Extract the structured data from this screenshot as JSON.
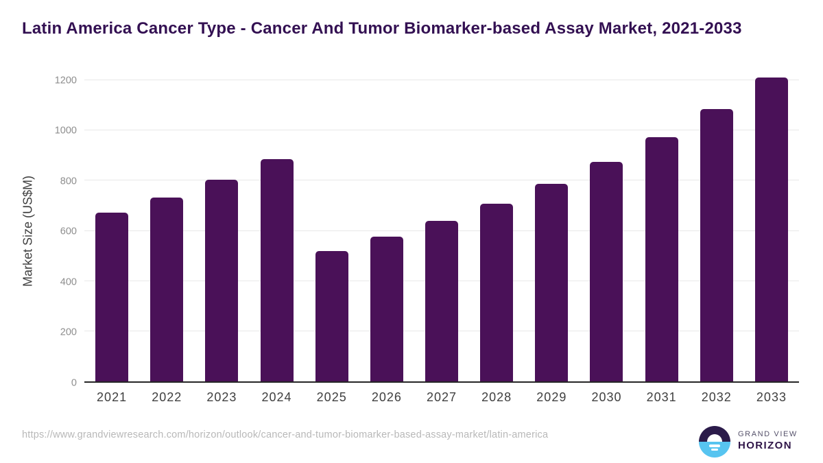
{
  "title": "Latin America Cancer Type - Cancer And Tumor Biomarker-based Assay Market, 2021-2033",
  "chart_data": {
    "type": "bar",
    "categories": [
      "2021",
      "2022",
      "2023",
      "2024",
      "2025",
      "2026",
      "2027",
      "2028",
      "2029",
      "2030",
      "2031",
      "2032",
      "2033"
    ],
    "values": [
      672,
      732,
      805,
      885,
      520,
      578,
      640,
      707,
      786,
      876,
      974,
      1085,
      1212
    ],
    "title": "Latin America Cancer Type - Cancer And Tumor Biomarker-based Assay Market, 2021-2033",
    "xlabel": "",
    "ylabel": "Market Size (US$M)",
    "ylim": [
      0,
      1200
    ],
    "yticks": [
      0,
      200,
      400,
      600,
      800,
      1000,
      1200
    ],
    "grid": true,
    "legend": "none",
    "bar_color": "#4a1158"
  },
  "colors": {
    "title_text": "#331052",
    "bar_fill": "#4a1158",
    "gridline": "#e8e8e8",
    "axis_line": "#262626",
    "y_tick_text": "#8e8e8e",
    "x_tick_text": "#3f3f3f",
    "url_text": "#b8b8b8",
    "logo_dark": "#2b1b4a",
    "logo_light_blue": "#57c4f0"
  },
  "footer": {
    "source_url": "https://www.grandviewresearch.com/horizon/outlook/cancer-and-tumor-biomarker-based-assay-market/latin-america",
    "brand": {
      "line1": "GRAND VIEW",
      "line2": "HORIZON",
      "logo_icon": "sunrise-horizon-icon"
    }
  }
}
